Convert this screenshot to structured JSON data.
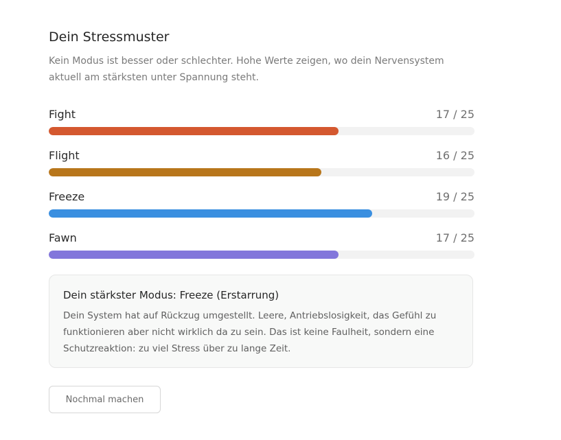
{
  "header": {
    "title": "Dein Stressmuster",
    "subtitle": "Kein Modus ist besser oder schlechter. Hohe Werte zeigen, wo dein Nervensystem aktuell am stärksten unter Spannung steht."
  },
  "modes": [
    {
      "name": "Fight",
      "score_label": "17 / 25",
      "score": 17,
      "max": 25,
      "color": "#d4582f"
    },
    {
      "name": "Flight",
      "score_label": "16 / 25",
      "score": 16,
      "max": 25,
      "color": "#b8761b"
    },
    {
      "name": "Freeze",
      "score_label": "19 / 25",
      "score": 19,
      "max": 25,
      "color": "#3a8fe0"
    },
    {
      "name": "Fawn",
      "score_label": "17 / 25",
      "score": 17,
      "max": 25,
      "color": "#8276db"
    }
  ],
  "track_color": "#f2f2f2",
  "result": {
    "title": "Dein stärkster Modus: Freeze (Erstarrung)",
    "body": "Dein System hat auf Rückzug umgestellt. Leere, Antriebslosigkeit, das Gefühl zu funktionieren aber nicht wirklich da zu sein. Das ist keine Faulheit, sondern eine Schutzreaktion: zu viel Stress über zu lange Zeit."
  },
  "actions": {
    "retry_label": "Nochmal machen"
  }
}
